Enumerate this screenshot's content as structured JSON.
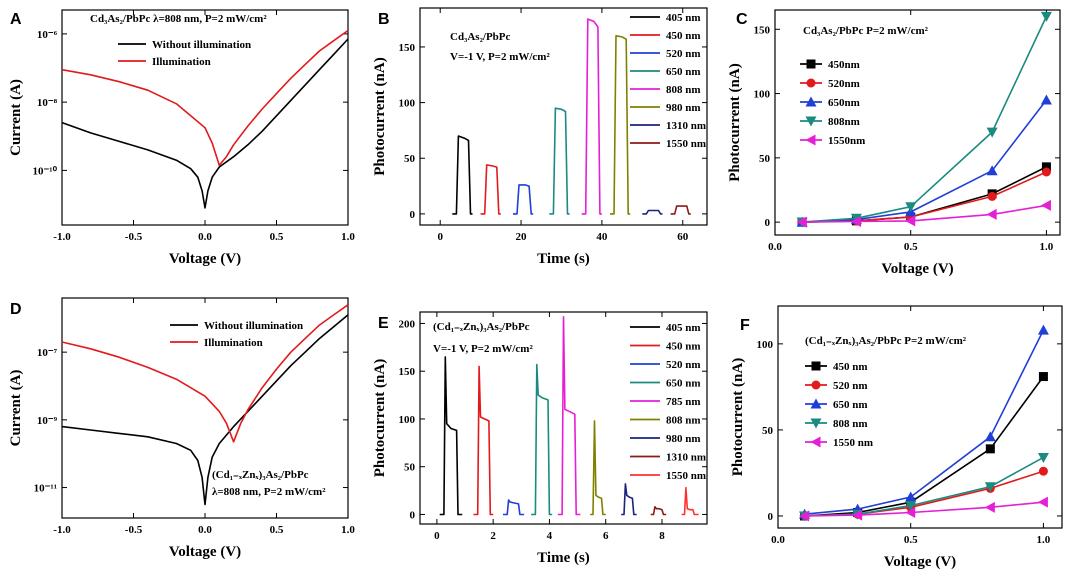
{
  "chart_data": [
    {
      "panel": "A",
      "type": "line",
      "yscale": "log",
      "xlabel": "Voltage (V)",
      "ylabel": "Current (A)",
      "annotation": "Cd₃As₂/PbPc   λ=808 nm, P=2 mW/cm²",
      "xlim": [
        -1.0,
        1.0
      ],
      "ylim_exp": [
        -11.6,
        -5.3
      ],
      "xticks": [
        "-1.0",
        "-0.5",
        "0.0",
        "0.5",
        "1.0"
      ],
      "yticks": [
        {
          "exp": -6,
          "label": "10⁻⁶"
        },
        {
          "exp": -8,
          "label": "10⁻⁸"
        },
        {
          "exp": -10,
          "label": "10⁻¹⁰"
        }
      ],
      "series": [
        {
          "name": "Without illumination",
          "color": "#000000",
          "x": [
            -1.0,
            -0.8,
            -0.6,
            -0.4,
            -0.2,
            -0.1,
            -0.05,
            -0.02,
            0.0,
            0.02,
            0.05,
            0.1,
            0.2,
            0.3,
            0.4,
            0.5,
            0.6,
            0.7,
            0.8,
            0.9,
            1.0
          ],
          "y": [
            -8.6,
            -8.9,
            -9.15,
            -9.4,
            -9.7,
            -9.95,
            -10.2,
            -10.6,
            -11.1,
            -10.6,
            -10.2,
            -9.9,
            -9.6,
            -9.25,
            -8.85,
            -8.4,
            -7.95,
            -7.5,
            -7.05,
            -6.6,
            -6.15
          ]
        },
        {
          "name": "Illumination",
          "color": "#e31a1c",
          "x": [
            -1.0,
            -0.8,
            -0.6,
            -0.4,
            -0.2,
            0.0,
            0.05,
            0.1,
            0.15,
            0.2,
            0.3,
            0.4,
            0.5,
            0.6,
            0.7,
            0.8,
            0.9,
            1.0
          ],
          "y": [
            -7.05,
            -7.2,
            -7.4,
            -7.65,
            -8.05,
            -8.75,
            -9.2,
            -9.85,
            -9.6,
            -9.25,
            -8.7,
            -8.2,
            -7.75,
            -7.3,
            -6.9,
            -6.5,
            -6.2,
            -5.9
          ]
        }
      ]
    },
    {
      "panel": "B",
      "type": "line",
      "xlabel": "Time (s)",
      "ylabel": "Photocurrent (nA)",
      "annotation": [
        "Cd₃As₂/PbPc",
        "V=-1 V, P=2 mW/cm²"
      ],
      "xlim": [
        -5,
        66
      ],
      "ylim": [
        -10,
        185
      ],
      "xticks": [
        0,
        20,
        40,
        60
      ],
      "yticks": [
        0,
        50,
        100,
        150
      ],
      "series": [
        {
          "name": "405 nm",
          "color": "#000000",
          "x": [
            3,
            4,
            4.5,
            6,
            7,
            7.5,
            8
          ],
          "y": [
            0,
            0,
            70,
            68,
            66,
            0,
            0
          ]
        },
        {
          "name": "450 nm",
          "color": "#e31a1c",
          "x": [
            10,
            11,
            11.5,
            13,
            14,
            14.5,
            15
          ],
          "y": [
            0,
            0,
            44,
            43,
            42,
            0,
            0
          ]
        },
        {
          "name": "520 nm",
          "color": "#1f3fd6",
          "x": [
            18,
            19,
            19.5,
            21,
            22,
            22.5,
            23
          ],
          "y": [
            0,
            0,
            26,
            26,
            25,
            0,
            0
          ]
        },
        {
          "name": "650 nm",
          "color": "#1b8a80",
          "x": [
            27,
            28,
            28.5,
            30,
            31,
            31.5,
            32
          ],
          "y": [
            0,
            0,
            95,
            94,
            92,
            0,
            0
          ]
        },
        {
          "name": "808 nm",
          "color": "#e51fd6",
          "x": [
            35,
            36,
            36.5,
            38,
            39,
            39.5,
            40
          ],
          "y": [
            0,
            0,
            175,
            173,
            168,
            0,
            0
          ]
        },
        {
          "name": "980 nm",
          "color": "#808000",
          "x": [
            42,
            43,
            43.5,
            45,
            46,
            46.5,
            47
          ],
          "y": [
            0,
            0,
            160,
            159,
            157,
            0,
            0
          ]
        },
        {
          "name": "1310 nm",
          "color": "#1a237e",
          "x": [
            50,
            51,
            51.5,
            53,
            54,
            54.5,
            55
          ],
          "y": [
            0,
            0,
            3,
            3,
            3,
            0,
            0
          ]
        },
        {
          "name": "1550 nm",
          "color": "#8b1a1a",
          "x": [
            57,
            58,
            58.5,
            60,
            61,
            61.5,
            62
          ],
          "y": [
            0,
            0,
            7,
            7,
            7,
            0,
            0
          ]
        }
      ]
    },
    {
      "panel": "C",
      "type": "line",
      "xlabel": "Voltage (V)",
      "ylabel": "Photocurrent (nA)",
      "annotation": "Cd₃As₂/PbPc    P=2 mW/cm²",
      "xlim": [
        0.0,
        1.05
      ],
      "ylim": [
        -10,
        165
      ],
      "xticks": [
        "0.0",
        "0.5",
        "1.0"
      ],
      "yticks": [
        0,
        50,
        100,
        150
      ],
      "series": [
        {
          "name": "450nm",
          "color": "#000000",
          "marker": "square",
          "x": [
            0.1,
            0.3,
            0.5,
            0.8,
            1.0
          ],
          "y": [
            0,
            1,
            4,
            22,
            43
          ]
        },
        {
          "name": "520nm",
          "color": "#e31a1c",
          "marker": "circle",
          "x": [
            0.1,
            0.3,
            0.5,
            0.8,
            1.0
          ],
          "y": [
            0,
            1,
            4,
            20,
            39
          ]
        },
        {
          "name": "650nm",
          "color": "#1f3fd6",
          "marker": "triangle-up",
          "x": [
            0.1,
            0.3,
            0.5,
            0.8,
            1.0
          ],
          "y": [
            0,
            2,
            8,
            40,
            95
          ]
        },
        {
          "name": "808nm",
          "color": "#1b8a80",
          "marker": "triangle-down",
          "x": [
            0.1,
            0.3,
            0.5,
            0.8,
            1.0
          ],
          "y": [
            0,
            3,
            12,
            70,
            160
          ]
        },
        {
          "name": "1550nm",
          "color": "#e51fd6",
          "marker": "triangle-left",
          "x": [
            0.1,
            0.3,
            0.5,
            0.8,
            1.0
          ],
          "y": [
            0,
            0.5,
            1,
            6,
            13
          ]
        }
      ]
    },
    {
      "panel": "D",
      "type": "line",
      "yscale": "log",
      "xlabel": "Voltage (V)",
      "ylabel": "Current (A)",
      "annotation": [
        "(Cd₁₋ₓZnₓ)₃As₂/PbPc",
        "λ=808 nm, P=2 mW/cm²"
      ],
      "xlim": [
        -1.0,
        1.0
      ],
      "ylim_exp": [
        -11.9,
        -5.4
      ],
      "xticks": [
        "-1.0",
        "-0.5",
        "0.0",
        "0.5",
        "1.0"
      ],
      "yticks": [
        {
          "exp": -7,
          "label": "10⁻⁷"
        },
        {
          "exp": -9,
          "label": "10⁻⁹"
        },
        {
          "exp": -11,
          "label": "10⁻¹¹"
        }
      ],
      "series": [
        {
          "name": "Without illumination",
          "color": "#000000",
          "x": [
            -1.0,
            -0.8,
            -0.6,
            -0.4,
            -0.2,
            -0.1,
            -0.05,
            -0.02,
            0.0,
            0.02,
            0.05,
            0.1,
            0.2,
            0.3,
            0.4,
            0.5,
            0.6,
            0.7,
            0.8,
            0.9,
            1.0
          ],
          "y": [
            -9.2,
            -9.3,
            -9.4,
            -9.5,
            -9.7,
            -9.9,
            -10.2,
            -10.7,
            -11.5,
            -10.7,
            -10.1,
            -9.7,
            -9.2,
            -8.75,
            -8.3,
            -7.85,
            -7.4,
            -7.0,
            -6.6,
            -6.25,
            -5.9
          ]
        },
        {
          "name": "Illumination",
          "color": "#e31a1c",
          "x": [
            -1.0,
            -0.8,
            -0.6,
            -0.4,
            -0.2,
            0.0,
            0.1,
            0.15,
            0.2,
            0.25,
            0.3,
            0.4,
            0.5,
            0.6,
            0.7,
            0.8,
            0.9,
            1.0
          ],
          "y": [
            -6.7,
            -6.9,
            -7.15,
            -7.45,
            -7.8,
            -8.3,
            -8.75,
            -9.1,
            -9.65,
            -9.1,
            -8.7,
            -8.05,
            -7.5,
            -7.0,
            -6.6,
            -6.2,
            -5.9,
            -5.6
          ]
        }
      ]
    },
    {
      "panel": "E",
      "type": "line",
      "xlabel": "Time (s)",
      "ylabel": "Photocurrent (nA)",
      "annotation": [
        "(Cd₁₋ₓZnₓ)₃As₂/PbPc",
        "V=-1 V, P=2 mW/cm²"
      ],
      "xlim": [
        -0.6,
        9.6
      ],
      "ylim": [
        -10,
        212
      ],
      "xticks": [
        0,
        2,
        4,
        6,
        8
      ],
      "yticks": [
        0,
        50,
        100,
        150,
        200
      ],
      "series": [
        {
          "name": "405 nm",
          "color": "#000000",
          "x": [
            0.1,
            0.25,
            0.3,
            0.35,
            0.5,
            0.7,
            0.75,
            0.9
          ],
          "y": [
            0,
            0,
            165,
            95,
            90,
            88,
            0,
            0
          ]
        },
        {
          "name": "450 nm",
          "color": "#e31a1c",
          "x": [
            1.3,
            1.45,
            1.5,
            1.55,
            1.7,
            1.85,
            1.9,
            2.0
          ],
          "y": [
            0,
            0,
            155,
            102,
            100,
            98,
            0,
            0
          ]
        },
        {
          "name": "520 nm",
          "color": "#1f3fd6",
          "x": [
            2.35,
            2.5,
            2.55,
            2.6,
            2.75,
            2.9,
            2.95,
            3.1
          ],
          "y": [
            0,
            0,
            15,
            13,
            12,
            11,
            0,
            0
          ]
        },
        {
          "name": "650 nm",
          "color": "#1b8a80",
          "x": [
            3.35,
            3.5,
            3.55,
            3.6,
            3.75,
            3.95,
            4.0,
            4.1
          ],
          "y": [
            0,
            0,
            157,
            125,
            122,
            120,
            0,
            0
          ]
        },
        {
          "name": "785 nm",
          "color": "#e51fd6",
          "x": [
            4.3,
            4.45,
            4.5,
            4.55,
            4.7,
            4.9,
            4.95,
            5.1
          ],
          "y": [
            0,
            0,
            207,
            110,
            108,
            105,
            0,
            0
          ]
        },
        {
          "name": "808 nm",
          "color": "#808000",
          "x": [
            5.45,
            5.55,
            5.6,
            5.65,
            5.75,
            5.85,
            5.9,
            6.0
          ],
          "y": [
            0,
            0,
            98,
            20,
            18,
            17,
            0,
            0
          ]
        },
        {
          "name": "980 nm",
          "color": "#1a237e",
          "x": [
            6.55,
            6.65,
            6.7,
            6.75,
            6.85,
            6.95,
            7.0,
            7.1
          ],
          "y": [
            0,
            0,
            32,
            20,
            18,
            17,
            0,
            0
          ]
        },
        {
          "name": "1310 nm",
          "color": "#8b1a1a",
          "x": [
            7.6,
            7.7,
            7.75,
            7.8,
            7.9,
            8.0,
            8.05,
            8.15
          ],
          "y": [
            0,
            0,
            8,
            6,
            6,
            5,
            0,
            0
          ]
        },
        {
          "name": "1550 nm",
          "color": "#ff3030",
          "x": [
            8.7,
            8.8,
            8.85,
            8.9,
            9.0,
            9.1,
            9.15,
            9.3
          ],
          "y": [
            0,
            0,
            28,
            6,
            5,
            5,
            0,
            0
          ]
        }
      ]
    },
    {
      "panel": "F",
      "type": "line",
      "xlabel": "Voltage (V)",
      "ylabel": "Photocurrent (nA)",
      "annotation": "(Cd₁₋ₓZnₓ)₃As₂/PbPc      P=2 mW/cm²",
      "xlim": [
        0.0,
        1.07
      ],
      "ylim": [
        -7,
        122
      ],
      "xticks": [
        "0.0",
        "0.5",
        "1.0"
      ],
      "yticks": [
        0,
        50,
        100
      ],
      "series": [
        {
          "name": "450 nm",
          "color": "#000000",
          "marker": "square",
          "x": [
            0.1,
            0.3,
            0.5,
            0.8,
            1.0
          ],
          "y": [
            0,
            2,
            8,
            39,
            81
          ]
        },
        {
          "name": "520 nm",
          "color": "#e31a1c",
          "marker": "circle",
          "x": [
            0.1,
            0.3,
            0.5,
            0.8,
            1.0
          ],
          "y": [
            0,
            1,
            5,
            16,
            26
          ]
        },
        {
          "name": "650 nm",
          "color": "#1f3fd6",
          "marker": "triangle-up",
          "x": [
            0.1,
            0.3,
            0.5,
            0.8,
            1.0
          ],
          "y": [
            1,
            4,
            11,
            46,
            108
          ]
        },
        {
          "name": "808 nm",
          "color": "#1b8a80",
          "marker": "triangle-down",
          "x": [
            0.1,
            0.3,
            0.5,
            0.8,
            1.0
          ],
          "y": [
            0,
            1,
            6,
            17,
            34
          ]
        },
        {
          "name": "1550 nm",
          "color": "#e51fd6",
          "marker": "triangle-left",
          "x": [
            0.1,
            0.3,
            0.5,
            0.8,
            1.0
          ],
          "y": [
            0,
            0.5,
            2,
            5,
            8
          ]
        }
      ]
    }
  ]
}
